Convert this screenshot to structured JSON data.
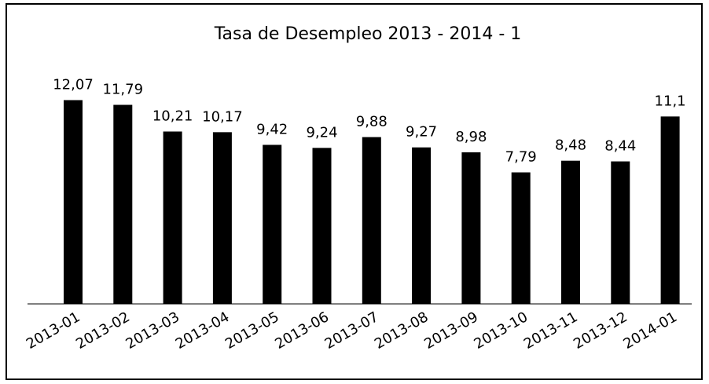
{
  "chart_data": {
    "type": "bar",
    "title": "Tasa de Desempleo 2013 - 2014 - 1",
    "categories": [
      "2013-01",
      "2013-02",
      "2013-03",
      "2013-04",
      "2013-05",
      "2013-06",
      "2013-07",
      "2013-08",
      "2013-09",
      "2013-10",
      "2013-11",
      "2013-12",
      "2014-01"
    ],
    "values": [
      12.07,
      11.79,
      10.21,
      10.17,
      9.42,
      9.24,
      9.88,
      9.27,
      8.98,
      7.79,
      8.48,
      8.44,
      11.1
    ],
    "value_labels": [
      "12,07",
      "11,79",
      "10,21",
      "10,17",
      "9,42",
      "9,24",
      "9,88",
      "9,27",
      "8,98",
      "7,79",
      "8,48",
      "8,44",
      "11,1"
    ],
    "color": "#000000"
  }
}
